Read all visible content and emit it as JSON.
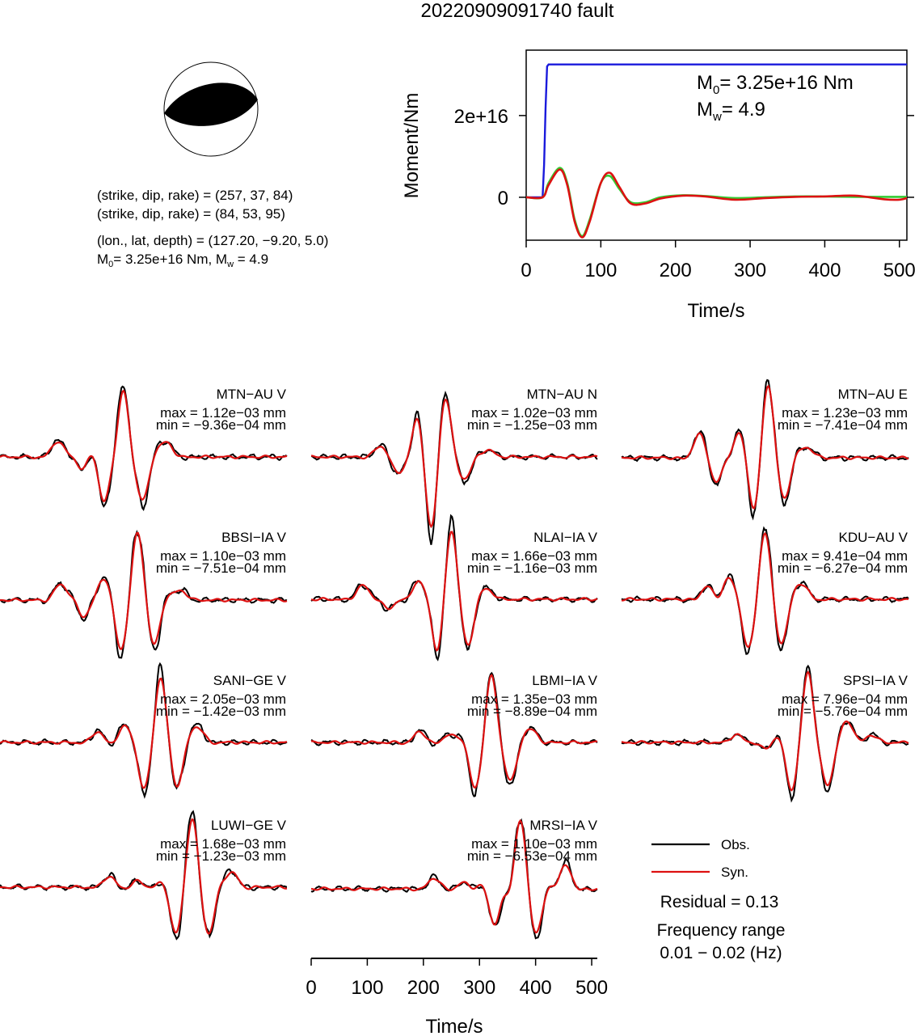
{
  "title": "20220909091740 fault",
  "mechanism": {
    "line1": "(strike, dip, rake) = (257, 37, 84)",
    "line2": "(strike, dip, rake) = (84, 53, 95)",
    "line3": "(lon., lat, depth) = (127.20, −9.20, 5.0)",
    "m0_text": "= 3.25e+16 Nm, M",
    "mw_text": " = 4.9"
  },
  "colors": {
    "obs": "#000000",
    "syn": "#dd1111",
    "cumulative": "#1a1adc",
    "rate_green": "#33cc33",
    "rate_red": "#dd1111"
  },
  "chart_data": [
    {
      "type": "line",
      "id": "moment-function",
      "ylabel": "Moment/Nm",
      "xlabel": "Time/s",
      "xlim": [
        0,
        510
      ],
      "ylim": [
        -1.05e+16,
        3.6e+16
      ],
      "x_ticks": [
        0,
        100,
        200,
        300,
        400,
        500
      ],
      "x_tick_labels": [
        "0",
        "100",
        "200",
        "300",
        "400",
        "500"
      ],
      "y_ticks": [
        0,
        2e+16
      ],
      "y_tick_labels": [
        "0",
        "2e+16"
      ],
      "annotation": {
        "m0": "= 3.25e+16 Nm",
        "mw": "= 4.9"
      },
      "series": [
        {
          "kind": "cumulative",
          "color": "#1a1adc",
          "x": [
            0,
            22,
            24,
            26,
            28,
            30,
            510
          ],
          "y": [
            0,
            0,
            8000000000000000.0,
            2.2e+16,
            3.2e+16,
            3.25e+16,
            3.25e+16
          ]
        },
        {
          "kind": "green",
          "color": "#33cc33",
          "x": [
            0,
            22,
            30,
            45,
            55,
            65,
            75,
            85,
            100,
            112,
            125,
            140,
            160,
            180,
            210,
            240,
            280,
            320,
            360,
            400,
            440,
            480,
            510
          ],
          "y": [
            0,
            0,
            3500000000000000.0,
            7200000000000000.0,
            3500000000000000.0,
            -5500000000000000.0,
            -9500000000000000.0,
            -5500000000000000.0,
            3500000000000000.0,
            5200000000000000.0,
            2000000000000000.0,
            -1200000000000000.0,
            -1200000000000000.0,
            0,
            500000000000000.0,
            300000000000000.0,
            -200000000000000.0,
            0,
            200000000000000.0,
            200000000000000.0,
            100000000000000.0,
            100000000000000.0,
            100000000000000.0
          ]
        },
        {
          "kind": "red",
          "color": "#dd1111",
          "x": [
            0,
            22,
            30,
            45,
            55,
            65,
            75,
            85,
            100,
            112,
            125,
            140,
            160,
            180,
            210,
            240,
            280,
            320,
            360,
            400,
            440,
            480,
            500,
            510
          ],
          "y": [
            0,
            0,
            3000000000000000.0,
            6800000000000000.0,
            3000000000000000.0,
            -6000000000000000.0,
            -9800000000000000.0,
            -6000000000000000.0,
            3500000000000000.0,
            6000000000000000.0,
            2500000000000000.0,
            -1500000000000000.0,
            -1500000000000000.0,
            -300000000000000.0,
            400000000000000.0,
            200000000000000.0,
            -600000000000000.0,
            -200000000000000.0,
            100000000000000.0,
            200000000000000.0,
            400000000000000.0,
            -500000000000000.0,
            -600000000000000.0,
            -200000000000000.0
          ]
        }
      ]
    },
    {
      "type": "line",
      "id": "waveform-fits",
      "xlabel": "Time/s",
      "xlim": [
        0,
        510
      ],
      "x_ticks": [
        0,
        100,
        200,
        300,
        400,
        500
      ],
      "x_tick_labels": [
        "0",
        "100",
        "200",
        "300",
        "400",
        "500"
      ],
      "legend": {
        "obs": "Obs.",
        "syn": "Syn."
      },
      "residual": "Residual = 0.13",
      "freq_label": "Frequency range",
      "freq_range": "0.01 − 0.02 (Hz)",
      "stations": [
        {
          "name": "MTN−AU V",
          "max": "max = 1.12e−03 mm",
          "min": "min = −9.36e−04 mm",
          "wiggles": [
            [
              0.2,
              0.55,
              20
            ],
            [
              0.29,
              0.75,
              -18
            ],
            [
              0.36,
              0.8,
              -55
            ],
            [
              0.43,
              0.82,
              80
            ],
            [
              0.5,
              0.72,
              -52
            ],
            [
              0.58,
              0.5,
              18
            ]
          ]
        },
        {
          "name": "MTN−AU N",
          "max": "max = 1.02e−03 mm",
          "min": "min = −1.25e−03 mm",
          "wiggles": [
            [
              0.24,
              0.55,
              12
            ],
            [
              0.3,
              0.75,
              -18
            ],
            [
              0.37,
              0.85,
              38
            ],
            [
              0.42,
              0.78,
              -80
            ],
            [
              0.47,
              0.72,
              65
            ],
            [
              0.54,
              0.65,
              -25
            ],
            [
              0.62,
              0.5,
              8
            ]
          ]
        },
        {
          "name": "MTN−AU E",
          "max": "max = 1.23e−03 mm",
          "min": "min = −7.41e−04 mm",
          "wiggles": [
            [
              0.27,
              0.6,
              28
            ],
            [
              0.33,
              0.7,
              -30
            ],
            [
              0.41,
              0.7,
              25
            ],
            [
              0.46,
              0.75,
              -52
            ],
            [
              0.51,
              0.78,
              85
            ],
            [
              0.57,
              0.75,
              -45
            ],
            [
              0.65,
              0.55,
              12
            ]
          ]
        },
        {
          "name": "BBSI−IA V",
          "max": "max = 1.10e−03 mm",
          "min": "min = −7.51e−04 mm",
          "wiggles": [
            [
              0.21,
              0.55,
              20
            ],
            [
              0.29,
              0.8,
              -20
            ],
            [
              0.36,
              0.8,
              22
            ],
            [
              0.42,
              0.78,
              -55
            ],
            [
              0.48,
              0.78,
              78
            ],
            [
              0.54,
              0.72,
              -50
            ],
            [
              0.63,
              0.5,
              12
            ]
          ]
        },
        {
          "name": "NLAI−IA V",
          "max": "max = 1.66e−03 mm",
          "min": "min = −1.16e−03 mm",
          "wiggles": [
            [
              0.18,
              0.55,
              18
            ],
            [
              0.27,
              0.7,
              -12
            ],
            [
              0.37,
              0.75,
              20
            ],
            [
              0.44,
              0.78,
              -55
            ],
            [
              0.49,
              0.78,
              78
            ],
            [
              0.55,
              0.72,
              -52
            ],
            [
              0.62,
              0.55,
              10
            ]
          ]
        },
        {
          "name": "KDU−AU V",
          "max": "max = 9.41e−04 mm",
          "min": "min = −6.27e−04 mm",
          "wiggles": [
            [
              0.3,
              0.6,
              18
            ],
            [
              0.37,
              0.75,
              25
            ],
            [
              0.44,
              0.75,
              -55
            ],
            [
              0.5,
              0.8,
              78
            ],
            [
              0.56,
              0.72,
              -48
            ],
            [
              0.63,
              0.55,
              18
            ]
          ]
        },
        {
          "name": "SANI−GE V",
          "max": "max = 2.05e−03 mm",
          "min": "min = −1.42e−03 mm",
          "wiggles": [
            [
              0.34,
              0.6,
              14
            ],
            [
              0.43,
              0.7,
              18
            ],
            [
              0.5,
              0.75,
              -52
            ],
            [
              0.56,
              0.8,
              75
            ],
            [
              0.62,
              0.72,
              -48
            ],
            [
              0.69,
              0.55,
              18
            ]
          ]
        },
        {
          "name": "LBMI−IA V",
          "max": "max = 1.35e−03 mm",
          "min": "min = −8.89e−04 mm",
          "wiggles": [
            [
              0.38,
              0.6,
              14
            ],
            [
              0.48,
              0.7,
              10
            ],
            [
              0.57,
              0.75,
              -52
            ],
            [
              0.63,
              0.8,
              80
            ],
            [
              0.7,
              0.72,
              -45
            ],
            [
              0.77,
              0.55,
              15
            ]
          ]
        },
        {
          "name": "SPSI−IA V",
          "max": "max = 7.96e−04 mm",
          "min": "min = −5.76e−04 mm",
          "wiggles": [
            [
              0.4,
              0.6,
              10
            ],
            [
              0.5,
              0.7,
              -8
            ],
            [
              0.59,
              0.75,
              -52
            ],
            [
              0.65,
              0.8,
              85
            ],
            [
              0.72,
              0.72,
              -50
            ],
            [
              0.79,
              0.6,
              25
            ],
            [
              0.87,
              0.55,
              10
            ]
          ]
        },
        {
          "name": "LUWI−GE V",
          "max": "max = 1.68e−03 mm",
          "min": "min = −1.23e−03 mm",
          "wiggles": [
            [
              0.38,
              0.6,
              14
            ],
            [
              0.48,
              0.7,
              8
            ],
            [
              0.61,
              0.75,
              -52
            ],
            [
              0.67,
              0.8,
              80
            ],
            [
              0.73,
              0.72,
              -52
            ],
            [
              0.81,
              0.6,
              18
            ]
          ]
        },
        {
          "name": "MRSI−IA V",
          "max": "max = 1.10e−03 mm",
          "min": "min = −6.53e−04 mm",
          "wiggles": [
            [
              0.43,
              0.6,
              14
            ],
            [
              0.53,
              0.7,
              8
            ],
            [
              0.64,
              0.75,
              -45
            ],
            [
              0.73,
              0.8,
              85
            ],
            [
              0.79,
              0.72,
              -48
            ],
            [
              0.89,
              0.6,
              30
            ]
          ]
        }
      ]
    }
  ]
}
